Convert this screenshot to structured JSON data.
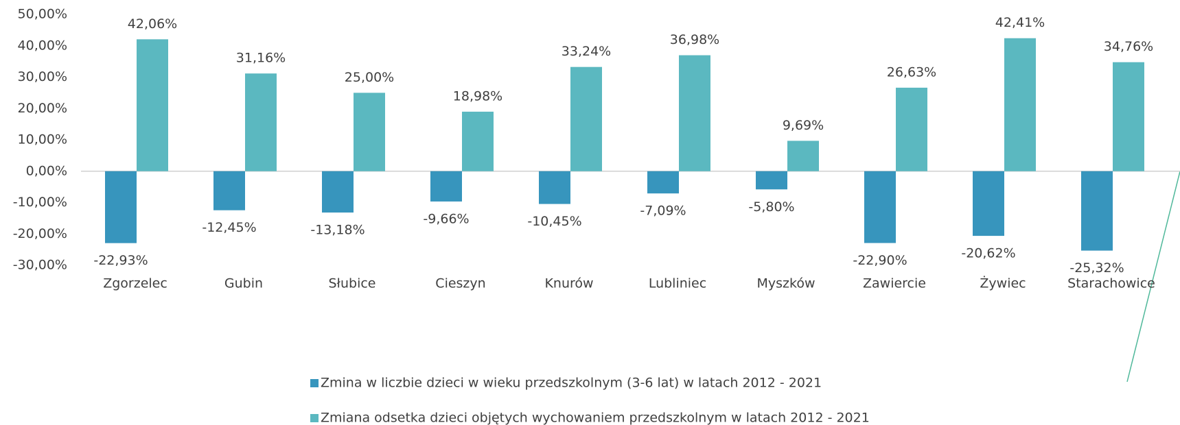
{
  "chart_data": {
    "type": "bar",
    "categories": [
      "Zgorzelec",
      "Gubin",
      "Słubice",
      "Cieszyn",
      "Knurów",
      "Lubliniec",
      "Myszków",
      "Zawiercie",
      "Żywiec",
      "Starachowice"
    ],
    "series": [
      {
        "name": "Zmina w liczbie dzieci w wieku przedszkolnym (3-6 lat) w latach 2012 - 2021",
        "color": "#3795bd",
        "values": [
          -22.93,
          -12.45,
          -13.18,
          -9.66,
          -10.45,
          -7.09,
          -5.8,
          -22.9,
          -20.62,
          -25.32
        ],
        "value_labels": [
          "-22,93%",
          "-12,45%",
          "-13,18%",
          "-9,66%",
          "-10,45%",
          "-7,09%",
          "-5,80%",
          "-22,90%",
          "-20,62%",
          "-25,32%"
        ]
      },
      {
        "name": "Zmiana odsetka dzieci objętych wychowaniem przedszkolnym w latach 2012 - 2021",
        "color": "#5bb8c0",
        "values": [
          42.06,
          31.16,
          25.0,
          18.98,
          33.24,
          36.98,
          9.69,
          26.63,
          42.41,
          34.76
        ],
        "value_labels": [
          "42,06%",
          "31,16%",
          "25,00%",
          "18,98%",
          "33,24%",
          "36,98%",
          "9,69%",
          "26,63%",
          "42,41%",
          "34,76%"
        ]
      }
    ],
    "ylim": [
      -30,
      50
    ],
    "yticks": [
      {
        "value": -30,
        "label": "-30,00%"
      },
      {
        "value": -20,
        "label": "-20,00%"
      },
      {
        "value": -10,
        "label": "-10,00%"
      },
      {
        "value": 0,
        "label": "0,00%"
      },
      {
        "value": 10,
        "label": "10,00%"
      },
      {
        "value": 20,
        "label": "20,00%"
      },
      {
        "value": 30,
        "label": "30,00%"
      },
      {
        "value": 40,
        "label": "40,00%"
      },
      {
        "value": 50,
        "label": "50,00%"
      }
    ],
    "grid": false,
    "legend": "bottom"
  }
}
